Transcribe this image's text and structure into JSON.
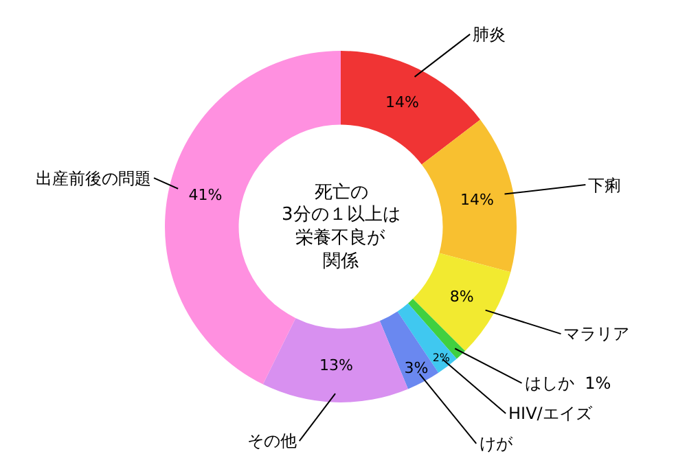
{
  "chart_data": {
    "type": "donut",
    "categories": [
      "肺炎",
      "下痢",
      "マラリア",
      "はしか",
      "HIV/エイズ",
      "けが",
      "その他",
      "出産前後の問題"
    ],
    "values": [
      14,
      14,
      8,
      1,
      2,
      3,
      13,
      41
    ],
    "colors": [
      "#f03434",
      "#f8c030",
      "#f2ea30",
      "#40d040",
      "#40c8f0",
      "#6a88f0",
      "#d890f0",
      "#ff90e0"
    ],
    "value_labels": [
      "14%",
      "14%",
      "8%",
      "1%",
      "2%",
      "3%",
      "13%",
      "41%"
    ],
    "annotations": [
      "死亡の",
      "3分の１以上は",
      "栄養不良が",
      "関係"
    ],
    "legend": false
  }
}
